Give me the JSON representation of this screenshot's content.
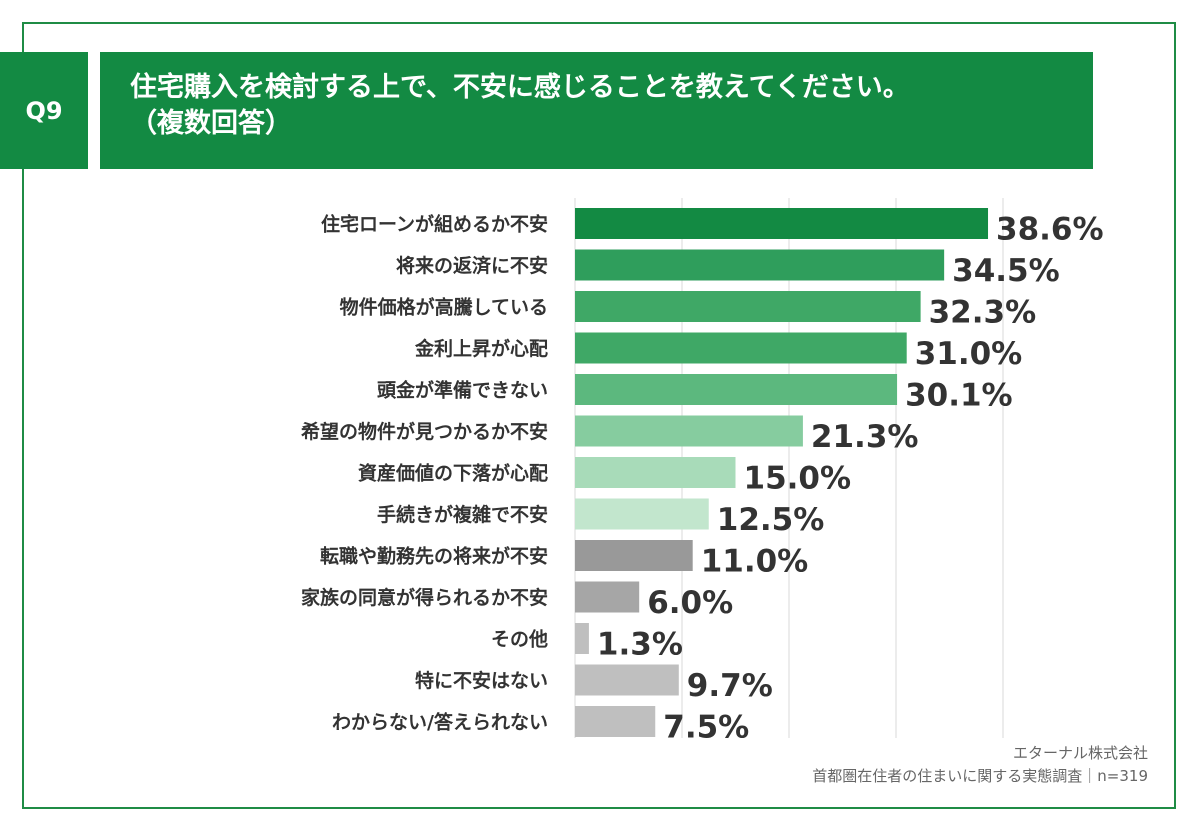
{
  "question_label": "Q9",
  "title_line1": "住宅購入を検討する上で、不安に感じることを教えてください。",
  "title_line2": "（複数回答）",
  "source_company": "エターナル株式会社",
  "source_survey": "首都圏在住者の住まいに関する実態調査｜n=319",
  "chart_data": {
    "type": "bar",
    "orientation": "horizontal",
    "categories": [
      "住宅ローンが組めるか不安",
      "将来の返済に不安",
      "物件価格が高騰している",
      "金利上昇が心配",
      "頭金が準備できない",
      "希望の物件が見つかるか不安",
      "資産価値の下落が心配",
      "手続きが複雑で不安",
      "転職や勤務先の将来が不安",
      "家族の同意が得られるか不安",
      "その他",
      "特に不安はない",
      "わからない/答えられない"
    ],
    "values": [
      38.6,
      34.5,
      32.3,
      31.0,
      30.1,
      21.3,
      15.0,
      12.5,
      11.0,
      6.0,
      1.3,
      9.7,
      7.5
    ],
    "value_labels": [
      "38.6%",
      "34.5%",
      "32.3%",
      "31.0%",
      "30.1%",
      "21.3%",
      "15.0%",
      "12.5%",
      "11.0%",
      "6.0%",
      "1.3%",
      "9.7%",
      "7.5%"
    ],
    "colors": [
      "#138a43",
      "#2f9e5c",
      "#3fa866",
      "#3fa866",
      "#5cb87e",
      "#86cc9f",
      "#a8dbb9",
      "#c2e6cd",
      "#999999",
      "#a6a6a6",
      "#bfbfbf",
      "#bfbfbf",
      "#bfbfbf"
    ],
    "xlim": [
      0,
      40
    ],
    "grid": true,
    "grid_color": "#d9d9d9",
    "unit": "%"
  }
}
